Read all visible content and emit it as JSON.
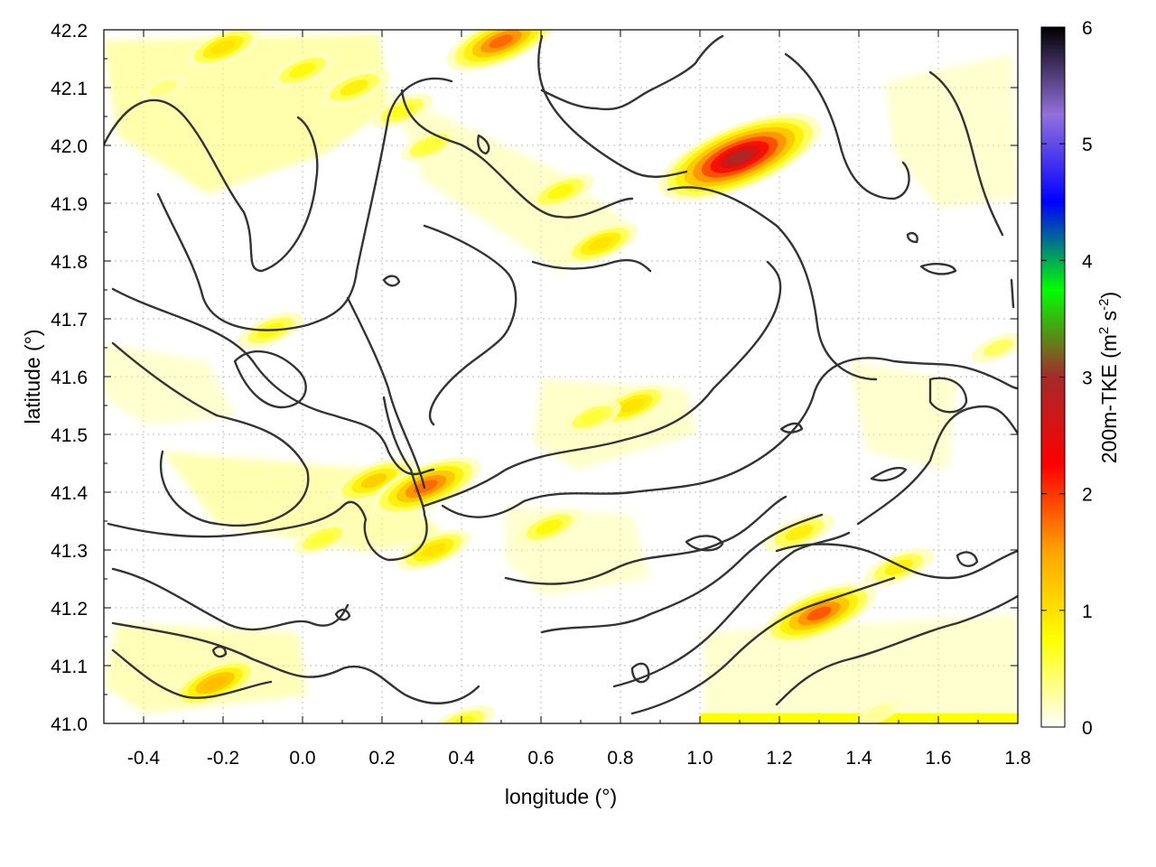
{
  "chart_data": {
    "type": "heatmap",
    "title": "",
    "xlabel": "longitude (°)",
    "ylabel": "latitude (°)",
    "xlim": [
      -0.5,
      1.8
    ],
    "ylim": [
      41.0,
      42.2
    ],
    "x_ticks": [
      "-0.4",
      "-0.2",
      "0.0",
      "0.2",
      "0.4",
      "0.6",
      "0.8",
      "1.0",
      "1.2",
      "1.4",
      "1.6",
      "1.8"
    ],
    "y_ticks": [
      "41.0",
      "41.1",
      "41.2",
      "41.3",
      "41.4",
      "41.5",
      "41.6",
      "41.7",
      "41.8",
      "41.9",
      "42.0",
      "42.1",
      "42.2"
    ],
    "grid": true,
    "colorbar": {
      "label_parts": [
        "200m-TKE (m",
        "2",
        " s",
        "-2",
        ")"
      ],
      "range": [
        0,
        6
      ],
      "ticks": [
        "0",
        "1",
        "2",
        "3",
        "4",
        "5",
        "6"
      ],
      "palette": [
        "#ffffff",
        "#ffff00",
        "#ffa500",
        "#ff0000",
        "#a52a2a",
        "#00ff00",
        "#0000ff",
        "#9370db",
        "#000000"
      ]
    },
    "colors": {
      "contour": "#333333",
      "grid": "#bbbbbb",
      "axis": "#000000"
    },
    "hotspots": [
      {
        "lon": -0.2,
        "lat": 42.17,
        "value": 1.0
      },
      {
        "lon": 0.0,
        "lat": 42.13,
        "value": 0.8
      },
      {
        "lon": 0.13,
        "lat": 42.1,
        "value": 0.9
      },
      {
        "lon": 0.25,
        "lat": 42.06,
        "value": 0.7
      },
      {
        "lon": 0.32,
        "lat": 42.0,
        "value": 0.6
      },
      {
        "lon": -0.35,
        "lat": 42.1,
        "value": 0.4
      },
      {
        "lon": 0.65,
        "lat": 41.92,
        "value": 0.8
      },
      {
        "lon": 0.75,
        "lat": 41.83,
        "value": 1.0
      },
      {
        "lon": 0.83,
        "lat": 41.55,
        "value": 1.0
      },
      {
        "lon": 0.73,
        "lat": 41.53,
        "value": 0.6
      },
      {
        "lon": 0.18,
        "lat": 41.42,
        "value": 1.2
      },
      {
        "lon": 0.31,
        "lat": 41.41,
        "value": 1.8
      },
      {
        "lon": 0.33,
        "lat": 41.3,
        "value": 1.0
      },
      {
        "lon": -0.08,
        "lat": 41.68,
        "value": 0.8
      },
      {
        "lon": 1.3,
        "lat": 41.19,
        "value": 1.9
      },
      {
        "lon": 1.5,
        "lat": 41.27,
        "value": 0.9
      },
      {
        "lon": 1.25,
        "lat": 41.33,
        "value": 0.9
      },
      {
        "lon": 0.62,
        "lat": 41.34,
        "value": 0.8
      },
      {
        "lon": -0.22,
        "lat": 41.07,
        "value": 1.3
      },
      {
        "lon": 0.05,
        "lat": 41.32,
        "value": 0.6
      },
      {
        "lon": 0.4,
        "lat": 41.0,
        "value": 0.8
      },
      {
        "lon": 0.5,
        "lat": 42.18,
        "value": 1.8
      },
      {
        "lon": 1.1,
        "lat": 41.98,
        "value": 3.0
      },
      {
        "lon": 1.75,
        "lat": 41.65,
        "value": 0.5
      },
      {
        "lon": 1.45,
        "lat": 41.02,
        "value": 0.3
      }
    ]
  }
}
